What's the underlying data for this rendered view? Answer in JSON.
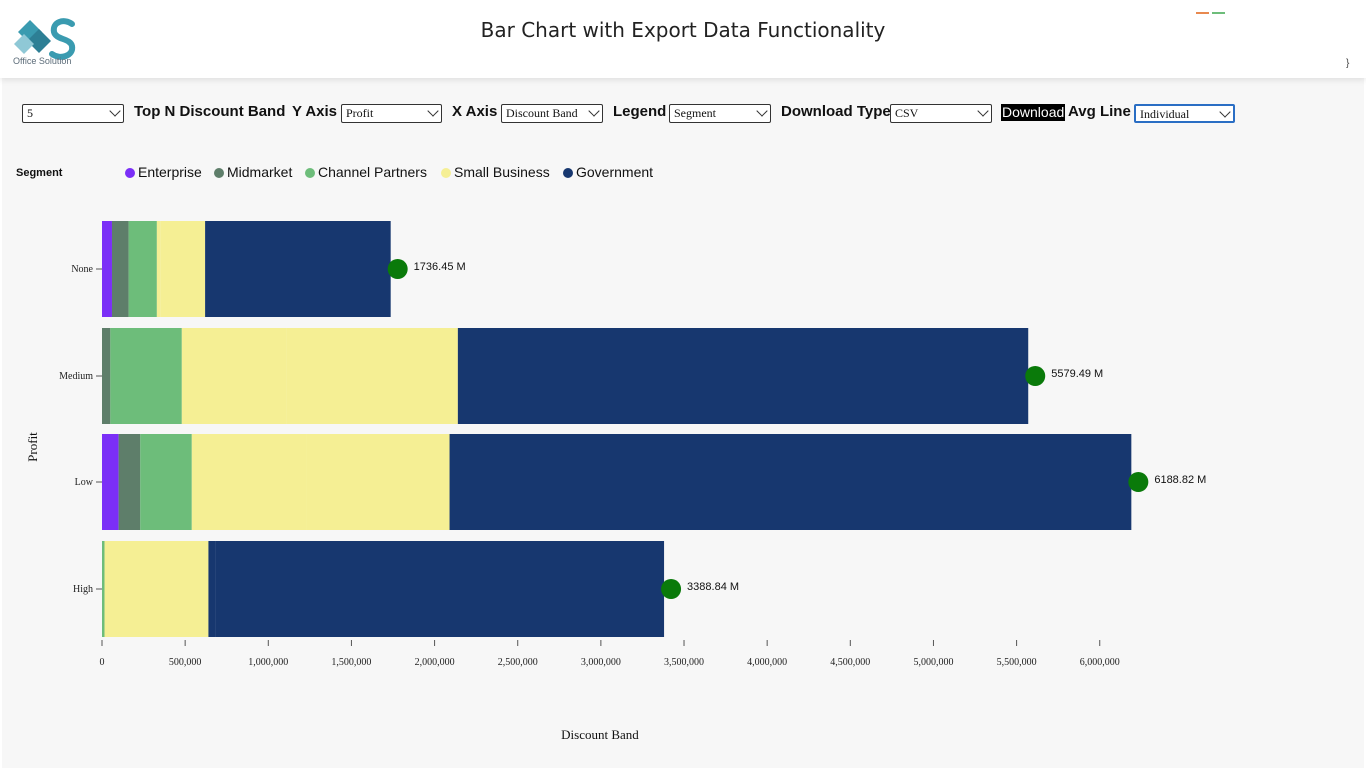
{
  "header": {
    "logo_caption": "Office Solution",
    "title": "Bar Chart with Export Data Functionality",
    "corner_glyph": "}"
  },
  "controls": {
    "top_n_value": "5",
    "top_n_label": "Top N Discount Band",
    "y_axis_label": "Y Axis",
    "y_axis_value": "Profit",
    "x_axis_label": "X Axis",
    "x_axis_value": "Discount Band",
    "legend_label": "Legend",
    "legend_value": "Segment",
    "download_type_label": "Download Type",
    "download_type_value": "CSV",
    "download_button": "Download",
    "avg_line_label": "Avg Line",
    "avg_line_value": "Individual"
  },
  "legend": {
    "title": "Segment",
    "items": [
      {
        "label": "Enterprise",
        "color": "#7b2ff7"
      },
      {
        "label": "Midmarket",
        "color": "#5e7e6a"
      },
      {
        "label": "Channel Partners",
        "color": "#6dbd7a"
      },
      {
        "label": "Small Business",
        "color": "#f5ef94"
      },
      {
        "label": "Government",
        "color": "#17376f"
      }
    ]
  },
  "chart_data": {
    "type": "bar",
    "orientation": "horizontal",
    "stacked": true,
    "categories": [
      "None",
      "Medium",
      "Low",
      "High"
    ],
    "xlabel": "Discount Band",
    "ylabel": "Profit",
    "xlim": [
      0,
      6200000
    ],
    "x_ticks": [
      0,
      500000,
      1000000,
      1500000,
      2000000,
      2500000,
      3000000,
      3500000,
      4000000,
      4500000,
      5000000,
      5500000,
      6000000
    ],
    "x_tick_labels": [
      "0",
      "500,000",
      "1,000,000",
      "1,500,000",
      "2,000,000",
      "2,500,000",
      "3,000,000",
      "3,500,000",
      "4,000,000",
      "4,500,000",
      "5,000,000",
      "5,500,000",
      "6,000,000"
    ],
    "segments": [
      [
        "Enterprise",
        "Midmarket",
        "Channel Partners",
        "Small Business",
        "Small Business",
        "Government"
      ],
      [
        "Midmarket",
        "Channel Partners",
        "Small Business",
        "Small Business",
        "Government"
      ],
      [
        "Enterprise",
        "Midmarket",
        "Channel Partners",
        "Small Business",
        "Small Business",
        "Government"
      ],
      [
        "Channel Partners",
        "Small Business",
        "Government",
        "Government"
      ]
    ],
    "values": [
      [
        60000,
        100000,
        170000,
        20000,
        270000,
        1116000
      ],
      [
        50000,
        430000,
        630000,
        1030000,
        3430000
      ],
      [
        100000,
        130000,
        310000,
        690000,
        860000,
        4100000
      ],
      [
        15000,
        625000,
        40000,
        2700000
      ]
    ],
    "avg_line": {
      "color": "#0a7a0a",
      "values": [
        1736450000,
        5579490000,
        6188820000,
        3388840000
      ],
      "labels": [
        "1736.45 M",
        "5579.49 M",
        "6188.82 M",
        "3388.84 M"
      ]
    }
  }
}
